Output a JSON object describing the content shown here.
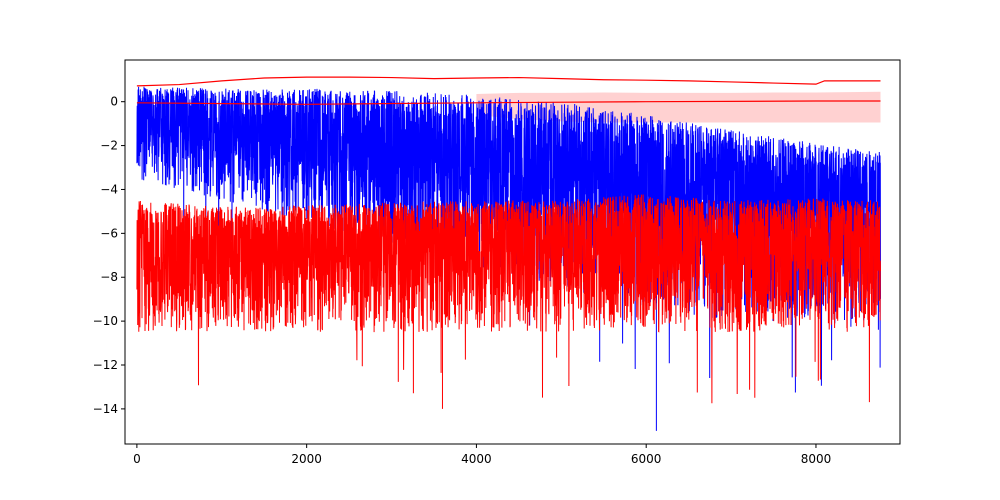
{
  "chart_data": {
    "type": "line",
    "title": "",
    "xlabel": "",
    "ylabel": "",
    "xlim": [
      -140,
      8990
    ],
    "ylim": [
      -15.6,
      1.9
    ],
    "x_ticks": [
      0,
      2000,
      4000,
      6000,
      8000
    ],
    "y_ticks": [
      0,
      -2,
      -4,
      -6,
      -8,
      -10,
      -12,
      -14
    ],
    "x_tick_labels": [
      "0",
      "2000",
      "4000",
      "6000",
      "8000"
    ],
    "y_tick_labels": [
      "0",
      "−2",
      "−4",
      "−6",
      "−8",
      "−10",
      "−12",
      "−14"
    ],
    "n_points": 8760,
    "grid": false,
    "legend": false,
    "colors": {
      "blue": "#0000ff",
      "red": "#ff0000",
      "band": "#ff9999"
    },
    "series": [
      {
        "color": "#0000ff",
        "style": "noisy line",
        "x": [
          0,
          1000,
          2000,
          3000,
          4000,
          5000,
          6000,
          7000,
          8000,
          8760
        ],
        "upper": [
          0.7,
          0.6,
          0.6,
          0.5,
          0.3,
          0.0,
          -0.6,
          -1.3,
          -1.9,
          -2.3
        ],
        "center": [
          -0.5,
          -1.3,
          -2.0,
          -2.5,
          -3.0,
          -3.5,
          -4.0,
          -4.3,
          -4.5,
          -4.5
        ],
        "lower": [
          -3.5,
          -4.5,
          -5.5,
          -6.5,
          -7.5,
          -8.5,
          -9.5,
          -10.0,
          -10.0,
          -10.5
        ],
        "minimum": {
          "x": 6120,
          "y": -15.0
        }
      },
      {
        "color": "#ff0000",
        "style": "noisy line",
        "x": [
          0,
          1000,
          2000,
          3000,
          4000,
          5000,
          6000,
          7000,
          8000,
          8760
        ],
        "upper": [
          -4.5,
          -4.8,
          -4.7,
          -4.6,
          -4.5,
          -4.5,
          -4.2,
          -4.5,
          -4.4,
          -4.5
        ],
        "center": [
          -6.8,
          -7.0,
          -7.0,
          -6.9,
          -6.8,
          -6.9,
          -7.0,
          -7.0,
          -6.9,
          -7.0
        ],
        "lower": [
          -10.5,
          -10.5,
          -10.5,
          -10.5,
          -10.5,
          -10.5,
          -10.5,
          -10.5,
          -10.5,
          -10.5
        ],
        "minimum": {
          "x": 3600,
          "y": -14.0
        }
      },
      {
        "color": "#ff0000",
        "style": "line",
        "x": [
          0,
          500,
          1000,
          1500,
          2000,
          2500,
          3000,
          3500,
          4000,
          4500,
          5000,
          5500,
          6000,
          6500,
          7000,
          7500,
          8000,
          8100,
          8760
        ],
        "y": [
          0.72,
          0.78,
          0.95,
          1.08,
          1.12,
          1.12,
          1.1,
          1.05,
          1.08,
          1.1,
          1.05,
          1.0,
          0.98,
          0.95,
          0.9,
          0.85,
          0.8,
          0.95,
          0.95
        ]
      },
      {
        "color": "#ff0000",
        "style": "line",
        "x": [
          0,
          2000,
          4000,
          6000,
          8000,
          8760
        ],
        "y": [
          -0.05,
          -0.12,
          -0.05,
          0.0,
          0.03,
          0.03
        ]
      },
      {
        "color": "#ff9999",
        "style": "band",
        "x": [
          4000,
          4500,
          5000,
          5500,
          6000,
          6500,
          7000,
          7500,
          8000,
          8760
        ],
        "upper": [
          0.35,
          0.4,
          0.4,
          0.42,
          0.4,
          0.4,
          0.4,
          0.42,
          0.42,
          0.45
        ],
        "lower": [
          -0.6,
          -0.8,
          -0.9,
          -0.95,
          -0.95,
          -0.95,
          -0.95,
          -0.95,
          -0.95,
          -0.95
        ]
      }
    ]
  }
}
